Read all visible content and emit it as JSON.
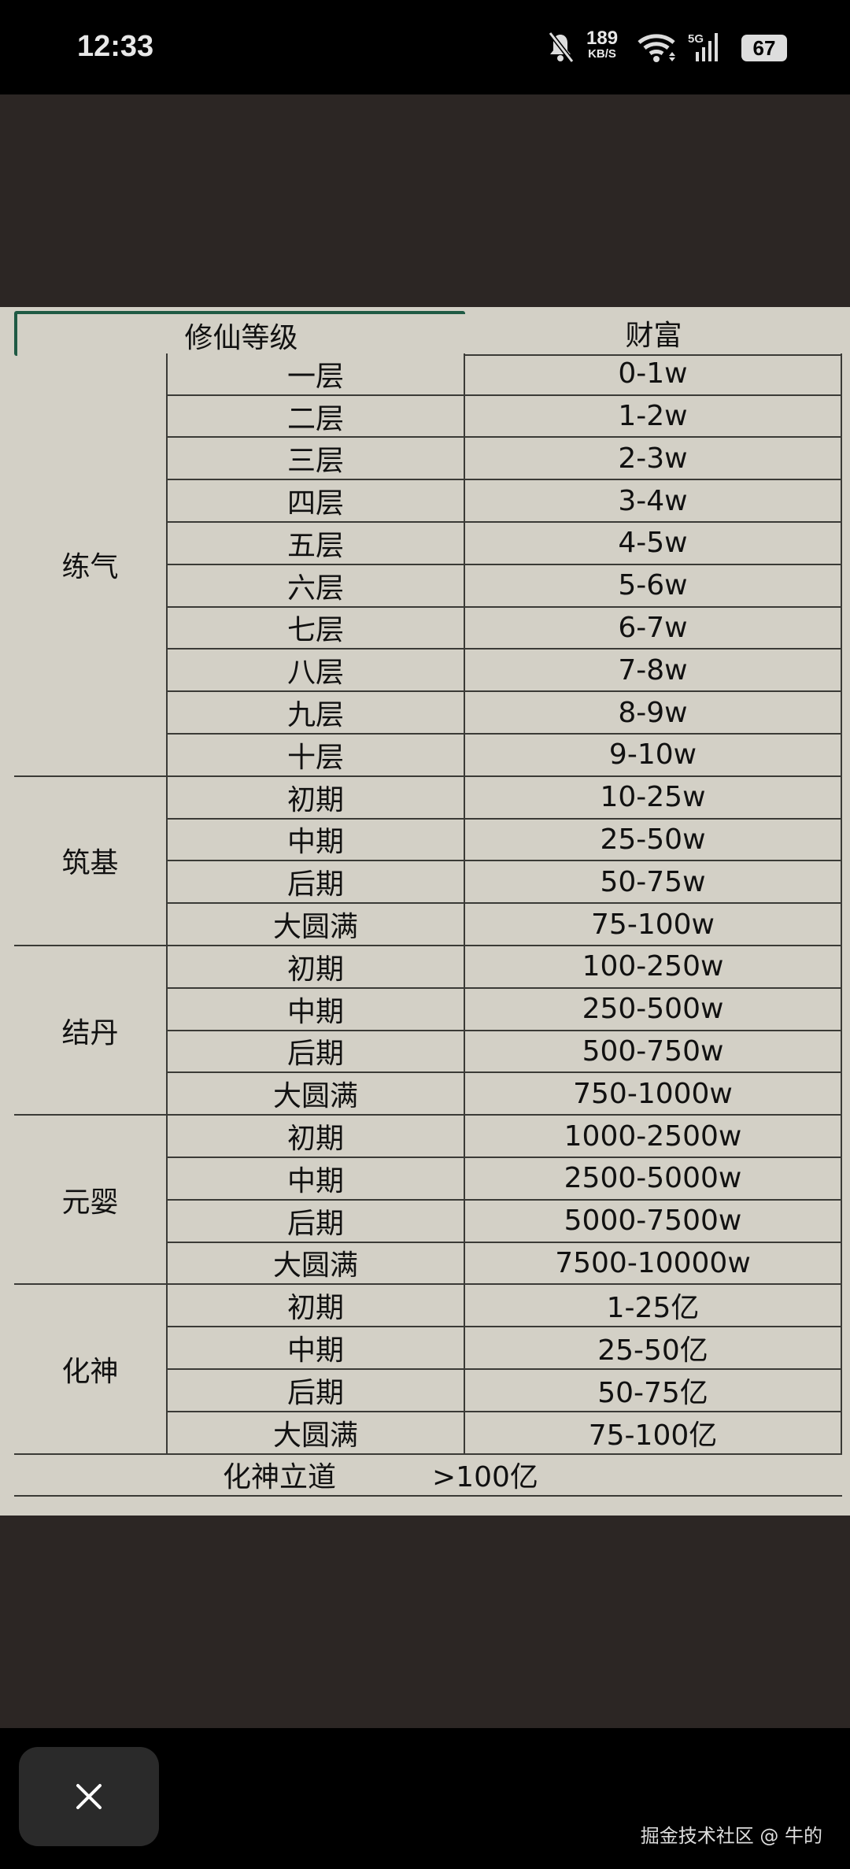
{
  "status_bar": {
    "time": "12:33",
    "net_speed": "189",
    "net_unit": "KB/S",
    "network": "5G",
    "battery": "67",
    "icons": [
      "bell-muted-icon",
      "wifi-icon",
      "signal-icon",
      "battery-icon"
    ]
  },
  "table": {
    "headers": [
      "修仙等级",
      "财富"
    ],
    "groups": [
      {
        "name": "练气",
        "rows": [
          [
            "一层",
            "0-1w"
          ],
          [
            "二层",
            "1-2w"
          ],
          [
            "三层",
            "2-3w"
          ],
          [
            "四层",
            "3-4w"
          ],
          [
            "五层",
            "4-5w"
          ],
          [
            "六层",
            "5-6w"
          ],
          [
            "七层",
            "6-7w"
          ],
          [
            "八层",
            "7-8w"
          ],
          [
            "九层",
            "8-9w"
          ],
          [
            "十层",
            "9-10w"
          ]
        ]
      },
      {
        "name": "筑基",
        "rows": [
          [
            "初期",
            "10-25w"
          ],
          [
            "中期",
            "25-50w"
          ],
          [
            "后期",
            "50-75w"
          ],
          [
            "大圆满",
            "75-100w"
          ]
        ]
      },
      {
        "name": "结丹",
        "rows": [
          [
            "初期",
            "100-250w"
          ],
          [
            "中期",
            "250-500w"
          ],
          [
            "后期",
            "500-750w"
          ],
          [
            "大圆满",
            "750-1000w"
          ]
        ]
      },
      {
        "name": "元婴",
        "rows": [
          [
            "初期",
            "1000-2500w"
          ],
          [
            "中期",
            "2500-5000w"
          ],
          [
            "后期",
            "5000-7500w"
          ],
          [
            "大圆满",
            "7500-10000w"
          ]
        ]
      },
      {
        "name": "化神",
        "rows": [
          [
            "初期",
            "1-25亿"
          ],
          [
            "中期",
            "25-50亿"
          ],
          [
            "后期",
            "50-75亿"
          ],
          [
            "大圆满",
            "75-100亿"
          ]
        ]
      }
    ],
    "final": {
      "level": "化神立道",
      "wealth": ">100亿"
    }
  },
  "viewer": {
    "close_icon": "close-icon",
    "watermark": "掘金技术社区 @ 牛的"
  }
}
